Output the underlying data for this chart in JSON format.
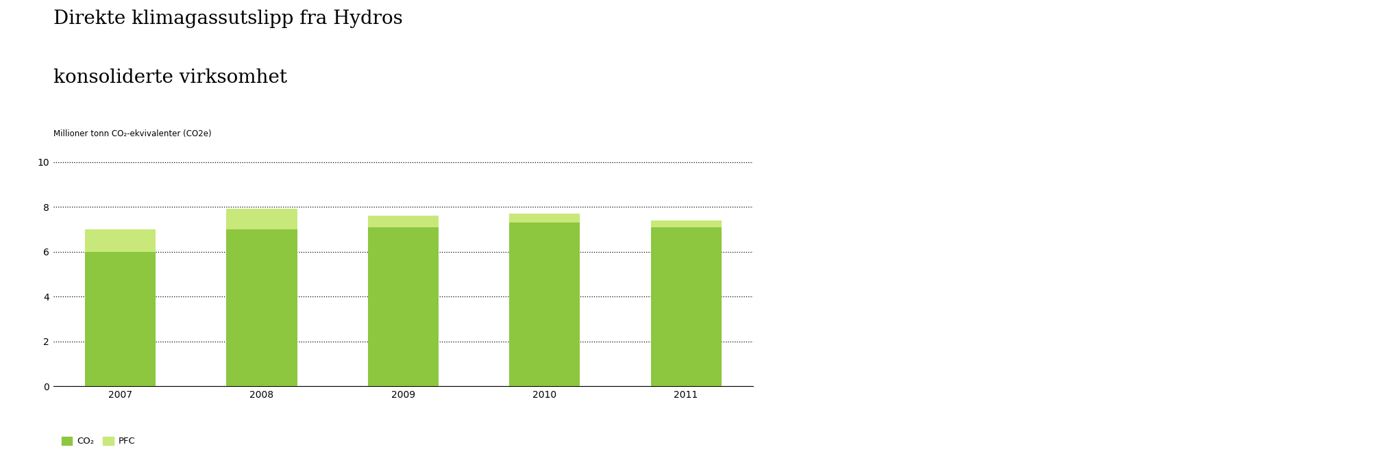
{
  "title_line1": "Direkte klimagassutslipp fra Hydros",
  "title_line2": "konsoliderte virksomhet",
  "ylabel": "Millioner tonn CO₂-ekvivalenter (CO2e)",
  "categories": [
    "2007",
    "2008",
    "2009",
    "2010",
    "2011"
  ],
  "co2_values": [
    6.0,
    7.0,
    7.1,
    7.3,
    7.1
  ],
  "pfc_values": [
    1.0,
    0.9,
    0.5,
    0.4,
    0.3
  ],
  "co2_color": "#8dc63f",
  "pfc_color": "#c8e87a",
  "ylim": [
    0,
    10.5
  ],
  "yticks": [
    0,
    2,
    4,
    6,
    8,
    10
  ],
  "background_color": "#ffffff",
  "title_fontsize": 20,
  "ylabel_fontsize": 8.5,
  "tick_fontsize": 10,
  "legend_co2_label": "CO₂",
  "legend_pfc_label": "PFC",
  "bar_width": 0.5
}
